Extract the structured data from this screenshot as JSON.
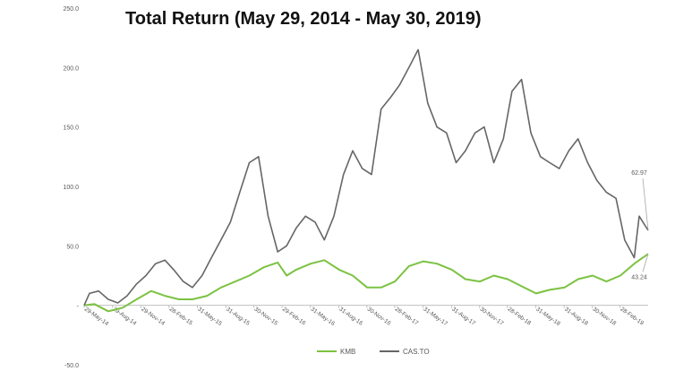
{
  "chart_data": {
    "type": "line",
    "title": "Total Return (May 29, 2014 - May 30, 2019)",
    "xlabel": "",
    "ylabel": "",
    "ylim": [
      -50,
      250
    ],
    "y_ticks": [
      "250.0",
      "200.0",
      "150.0",
      "100.0",
      "50.0",
      "-",
      "-50.0"
    ],
    "x_ticks": [
      "29-May-14",
      "29-Aug-14",
      "29-Nov-14",
      "28-Feb-15",
      "31-May-15",
      "31-Aug-15",
      "30-Nov-15",
      "29-Feb-16",
      "31-May-16",
      "31-Aug-16",
      "30-Nov-16",
      "28-Feb-17",
      "31-May-17",
      "31-Aug-17",
      "30-Nov-17",
      "28-Feb-18",
      "31-May-18",
      "31-Aug-18",
      "30-Nov-18",
      "28-Feb-19"
    ],
    "grid": false,
    "legend": "bottom",
    "annotations": [
      {
        "text": "62.97",
        "series": "CAS.TO"
      },
      {
        "text": "43.24",
        "series": "KMB"
      }
    ],
    "series": [
      {
        "name": "KMB",
        "color": "#7cc242",
        "x": [
          "2014-05-29",
          "2014-07-01",
          "2014-08-15",
          "2014-10-01",
          "2014-11-15",
          "2015-01-01",
          "2015-02-15",
          "2015-04-01",
          "2015-05-15",
          "2015-07-01",
          "2015-08-15",
          "2015-10-01",
          "2015-11-15",
          "2016-01-01",
          "2016-02-15",
          "2016-03-15",
          "2016-04-15",
          "2016-06-01",
          "2016-07-15",
          "2016-09-01",
          "2016-10-15",
          "2016-12-01",
          "2017-01-15",
          "2017-03-01",
          "2017-04-15",
          "2017-06-01",
          "2017-07-15",
          "2017-09-01",
          "2017-10-15",
          "2017-12-01",
          "2018-01-15",
          "2018-03-01",
          "2018-04-15",
          "2018-06-01",
          "2018-07-15",
          "2018-09-01",
          "2018-10-15",
          "2018-12-01",
          "2019-01-15",
          "2019-03-01",
          "2019-04-15",
          "2019-05-30"
        ],
        "values": [
          0,
          1,
          -5,
          -2,
          5,
          12,
          8,
          5,
          5,
          8,
          15,
          20,
          25,
          32,
          36,
          25,
          30,
          35,
          38,
          30,
          25,
          15,
          15,
          20,
          33,
          37,
          35,
          30,
          22,
          20,
          25,
          22,
          16,
          10,
          13,
          15,
          22,
          25,
          20,
          25,
          35,
          43.24
        ]
      },
      {
        "name": "CAS.TO",
        "color": "#666666",
        "x": [
          "2014-05-29",
          "2014-06-15",
          "2014-07-15",
          "2014-08-15",
          "2014-09-15",
          "2014-10-15",
          "2014-11-15",
          "2014-12-15",
          "2015-01-15",
          "2015-02-15",
          "2015-03-15",
          "2015-04-15",
          "2015-05-15",
          "2015-06-15",
          "2015-07-15",
          "2015-08-15",
          "2015-09-15",
          "2015-10-15",
          "2015-11-15",
          "2015-12-15",
          "2016-01-15",
          "2016-02-15",
          "2016-03-15",
          "2016-04-15",
          "2016-05-15",
          "2016-06-15",
          "2016-07-15",
          "2016-08-15",
          "2016-09-15",
          "2016-10-15",
          "2016-11-15",
          "2016-12-15",
          "2017-01-15",
          "2017-02-15",
          "2017-03-15",
          "2017-04-15",
          "2017-05-15",
          "2017-06-15",
          "2017-07-15",
          "2017-08-15",
          "2017-09-15",
          "2017-10-15",
          "2017-11-15",
          "2017-12-15",
          "2018-01-15",
          "2018-02-15",
          "2018-03-15",
          "2018-04-15",
          "2018-05-15",
          "2018-06-15",
          "2018-07-15",
          "2018-08-15",
          "2018-09-15",
          "2018-10-15",
          "2018-11-15",
          "2018-12-15",
          "2019-01-15",
          "2019-02-15",
          "2019-03-15",
          "2019-04-15",
          "2019-05-01",
          "2019-05-30"
        ],
        "values": [
          0,
          10,
          12,
          5,
          2,
          8,
          18,
          25,
          35,
          38,
          30,
          20,
          15,
          25,
          40,
          55,
          70,
          95,
          120,
          125,
          75,
          45,
          50,
          65,
          75,
          70,
          55,
          75,
          110,
          130,
          115,
          110,
          165,
          175,
          185,
          200,
          215,
          170,
          150,
          145,
          120,
          130,
          145,
          150,
          120,
          140,
          180,
          190,
          145,
          125,
          120,
          115,
          130,
          140,
          120,
          105,
          95,
          90,
          55,
          40,
          75,
          62.97
        ]
      }
    ]
  }
}
